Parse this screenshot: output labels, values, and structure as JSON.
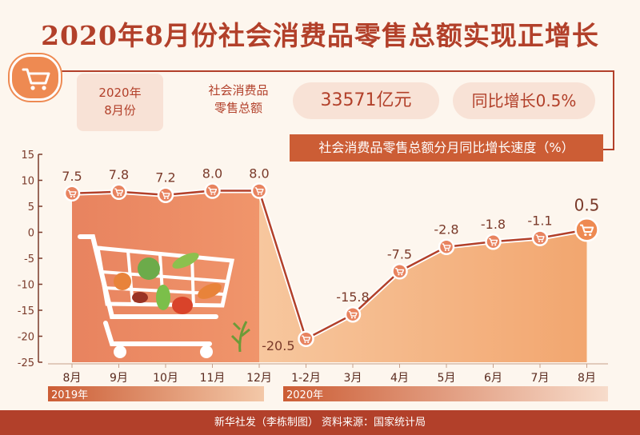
{
  "title": "2020年8月份社会消费品零售总额实现正增长",
  "info": {
    "date_line1": "2020年",
    "date_line2": "8月份",
    "label_line1": "社会消费品",
    "label_line2": "零售总额",
    "value": "33571亿元",
    "yoy": "同比增长0.5%"
  },
  "footer": "新华社发（李栋制图）  资料来源：国家统计局",
  "chart_data": {
    "type": "line",
    "title": "社会消费品零售总额分月同比增长速度（%）",
    "categories": [
      "8月",
      "9月",
      "10月",
      "11月",
      "12月",
      "1-2月",
      "3月",
      "4月",
      "5月",
      "6月",
      "7月",
      "8月"
    ],
    "values": [
      7.5,
      7.8,
      7.2,
      8.0,
      8.0,
      -20.5,
      -15.8,
      -7.5,
      -2.8,
      -1.8,
      -1.1,
      0.5
    ],
    "data_labels": [
      "7.5",
      "7.8",
      "7.2",
      "8.0",
      "8.0",
      "-20.5",
      "-15.8",
      "-7.5",
      "-2.8",
      "-1.8",
      "-1.1",
      "0.5"
    ],
    "ylim": [
      -25,
      15
    ],
    "yticks": [
      15,
      10,
      5,
      0,
      -5,
      -10,
      -15,
      -20,
      -25
    ],
    "year_groups": [
      {
        "label": "2019年",
        "from": 0,
        "to": 4
      },
      {
        "label": "2020年",
        "from": 5,
        "to": 11
      }
    ],
    "grid": false,
    "colors": {
      "line": "#b2402a",
      "fill_2019": "#e8835f",
      "fill_2020": "#f2a66f",
      "marker": "#e8835f",
      "label": "#7a3a2a",
      "last_marker": "#ee8a52"
    }
  }
}
